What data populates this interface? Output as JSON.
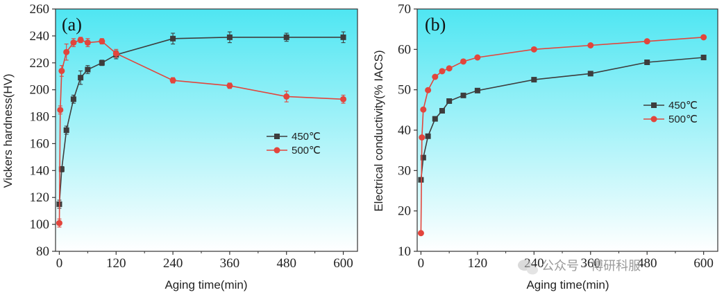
{
  "colors": {
    "s450": "#3d3d3d",
    "s500": "#e2453c",
    "bg_top": "#4fe6f2",
    "bg_bottom": "#ffffff",
    "axis": "#333333"
  },
  "watermark": "公众号 · 博研科服",
  "chart_data": [
    {
      "type": "line",
      "panel_label": "(a)",
      "title": "",
      "xlabel": "Aging time(min)",
      "ylabel": "Vickers hardness(HV)",
      "xlim": [
        -8,
        630
      ],
      "ylim": [
        80,
        260
      ],
      "xticks": [
        0,
        120,
        240,
        360,
        480,
        600
      ],
      "yticks": [
        80,
        100,
        120,
        140,
        160,
        180,
        200,
        220,
        240,
        260
      ],
      "legend": [
        "450℃",
        "500℃"
      ],
      "legend_position": "middle-right",
      "series": [
        {
          "name": "450℃",
          "x": [
            0,
            5,
            15,
            30,
            45,
            60,
            90,
            120,
            240,
            360,
            480,
            600
          ],
          "y": [
            115,
            141,
            170,
            193,
            209,
            215,
            220,
            226,
            238,
            239,
            239,
            239
          ],
          "err": [
            3,
            2,
            3,
            3,
            5,
            3,
            2,
            3,
            4,
            4,
            3,
            4
          ]
        },
        {
          "name": "500℃",
          "x": [
            0,
            2,
            5,
            15,
            30,
            45,
            60,
            90,
            120,
            240,
            360,
            480,
            600
          ],
          "y": [
            101,
            185,
            214,
            228,
            235,
            237,
            235,
            236,
            227,
            207,
            203,
            195,
            193
          ],
          "err": [
            3,
            3,
            4,
            6,
            3,
            2,
            3,
            2,
            3,
            2,
            2,
            4,
            3
          ]
        }
      ]
    },
    {
      "type": "line",
      "panel_label": "(b)",
      "title": "",
      "xlabel": "Aging time(min)",
      "ylabel": "Electrical conductivity(% IACS)",
      "xlim": [
        -8,
        630
      ],
      "ylim": [
        10,
        70
      ],
      "xticks": [
        0,
        120,
        240,
        360,
        480,
        600
      ],
      "yticks": [
        10,
        20,
        30,
        40,
        50,
        60,
        70
      ],
      "legend": [
        "450℃",
        "500℃"
      ],
      "legend_position": "middle-right",
      "series": [
        {
          "name": "450℃",
          "x": [
            0,
            5,
            15,
            30,
            45,
            60,
            90,
            120,
            240,
            360,
            480,
            600
          ],
          "y": [
            27.7,
            33.2,
            38.5,
            42.8,
            44.8,
            47.2,
            48.6,
            49.8,
            52.5,
            54,
            56.8,
            58
          ]
        },
        {
          "name": "500℃",
          "x": [
            0,
            2,
            5,
            15,
            30,
            45,
            60,
            90,
            120,
            240,
            360,
            480,
            600
          ],
          "y": [
            14.5,
            38.2,
            45.1,
            49.9,
            53.2,
            54.6,
            55.3,
            57,
            58,
            60,
            61,
            62,
            63
          ]
        }
      ]
    }
  ]
}
